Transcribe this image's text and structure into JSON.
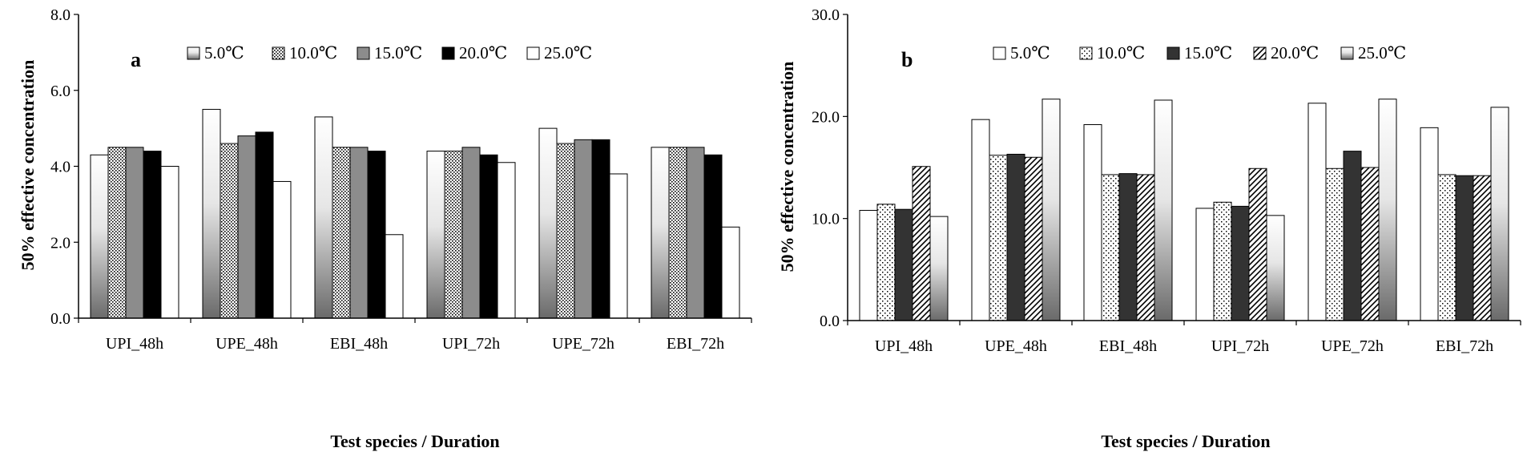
{
  "chart_data": [
    {
      "id": "a",
      "type": "bar",
      "panel_label": "a",
      "xlabel": "Test species / Duration",
      "ylabel": "50% effective concentration",
      "ylim": [
        0,
        8
      ],
      "yticks": [
        "0.0",
        "2.0",
        "4.0",
        "6.0",
        "8.0"
      ],
      "categories": [
        "UPI_48h",
        "UPE_48h",
        "EBI_48h",
        "UPI_72h",
        "UPE_72h",
        "EBI_72h"
      ],
      "legend_position": "top-right",
      "series": [
        {
          "name": "5.0℃",
          "fill": "gradient-light",
          "values": [
            4.3,
            5.5,
            5.3,
            4.4,
            5.0,
            4.5
          ]
        },
        {
          "name": "10.0℃",
          "fill": "dots",
          "values": [
            4.5,
            4.6,
            4.5,
            4.4,
            4.6,
            4.5
          ]
        },
        {
          "name": "15.0℃",
          "fill": "gray",
          "values": [
            4.5,
            4.8,
            4.5,
            4.5,
            4.7,
            4.5
          ]
        },
        {
          "name": "20.0℃",
          "fill": "black",
          "values": [
            4.4,
            4.9,
            4.4,
            4.3,
            4.7,
            4.3
          ]
        },
        {
          "name": "25.0℃",
          "fill": "white",
          "values": [
            4.0,
            3.6,
            2.2,
            4.1,
            3.8,
            2.4
          ]
        }
      ]
    },
    {
      "id": "b",
      "type": "bar",
      "panel_label": "b",
      "xlabel": "Test species / Duration",
      "ylabel": "50% effective concentration",
      "ylim": [
        0,
        30
      ],
      "yticks": [
        "0.0",
        "10.0",
        "20.0",
        "30.0"
      ],
      "categories": [
        "UPI_48h",
        "UPE_48h",
        "EBI_48h",
        "UPI_72h",
        "UPE_72h",
        "EBI_72h"
      ],
      "legend_position": "top-right",
      "series": [
        {
          "name": "5.0℃",
          "fill": "white",
          "values": [
            10.8,
            19.7,
            19.2,
            11.0,
            21.3,
            18.9
          ]
        },
        {
          "name": "10.0℃",
          "fill": "dots-sparse",
          "values": [
            11.4,
            16.2,
            14.3,
            11.6,
            14.9,
            14.3
          ]
        },
        {
          "name": "15.0℃",
          "fill": "dark",
          "values": [
            10.9,
            16.3,
            14.4,
            11.2,
            16.6,
            14.2
          ]
        },
        {
          "name": "20.0℃",
          "fill": "hatch",
          "values": [
            15.1,
            16.0,
            14.3,
            14.9,
            15.0,
            14.2
          ]
        },
        {
          "name": "25.0℃",
          "fill": "gradient-light",
          "values": [
            10.2,
            21.7,
            21.6,
            10.3,
            21.7,
            20.9
          ]
        }
      ]
    }
  ]
}
